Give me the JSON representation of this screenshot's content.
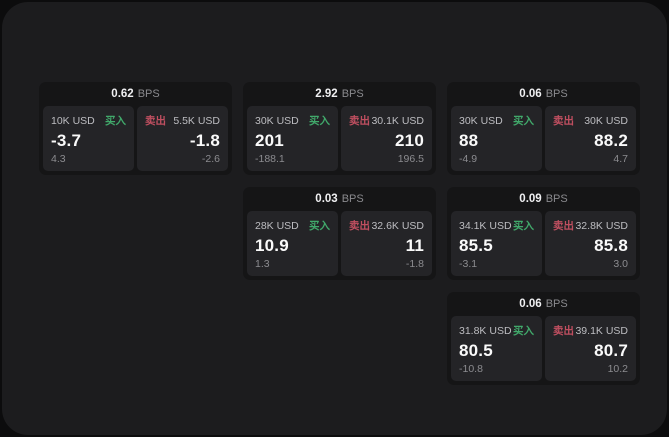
{
  "labels": {
    "bps_unit": "BPS",
    "buy": "买入",
    "sell": "卖出"
  },
  "colors": {
    "outer_background": "#0c0c0d",
    "panel_background": "#1c1c1e",
    "card_background": "#151516",
    "subpanel_background": "#242427",
    "buy_accent": "#41a96b",
    "sell_accent": "#c04f60",
    "primary_text": "#fafafa",
    "muted_text": "#8c8c90"
  },
  "cards": [
    {
      "bps": "0.62",
      "buy": {
        "size": "10K USD",
        "price": "-3.7",
        "delta": "4.3"
      },
      "sell": {
        "size": "5.5K USD",
        "price": "-1.8",
        "delta": "-2.6"
      }
    },
    {
      "bps": "2.92",
      "buy": {
        "size": "30K USD",
        "price": "201",
        "delta": "-188.1"
      },
      "sell": {
        "size": "30.1K USD",
        "price": "210",
        "delta": "196.5"
      }
    },
    {
      "bps": "0.06",
      "buy": {
        "size": "30K USD",
        "price": "88",
        "delta": "-4.9"
      },
      "sell": {
        "size": "30K USD",
        "price": "88.2",
        "delta": "4.7"
      }
    },
    {
      "bps": "0.03",
      "buy": {
        "size": "28K USD",
        "price": "10.9",
        "delta": "1.3"
      },
      "sell": {
        "size": "32.6K USD",
        "price": "11",
        "delta": "-1.8"
      }
    },
    {
      "bps": "0.09",
      "buy": {
        "size": "34.1K USD",
        "price": "85.5",
        "delta": "-3.1"
      },
      "sell": {
        "size": "32.8K USD",
        "price": "85.8",
        "delta": "3.0"
      }
    },
    {
      "bps": "0.06",
      "buy": {
        "size": "31.8K USD",
        "price": "80.5",
        "delta": "-10.8"
      },
      "sell": {
        "size": "39.1K USD",
        "price": "80.7",
        "delta": "10.2"
      }
    }
  ]
}
